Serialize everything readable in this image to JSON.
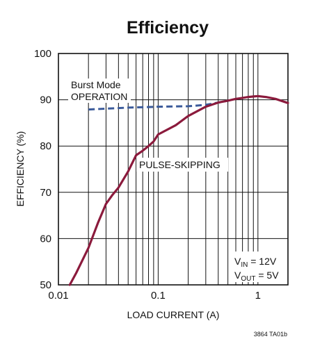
{
  "chart_data": {
    "type": "line",
    "title": "Efficiency",
    "xlabel": "LOAD CURRENT (A)",
    "ylabel": "EFFICIENCY (%)",
    "xscale": "log",
    "xlim": [
      0.01,
      2
    ],
    "ylim": [
      50,
      100
    ],
    "grid": true,
    "x_ticks": [
      0.01,
      0.1,
      1
    ],
    "x_tick_labels": [
      "0.01",
      "0.1",
      "1"
    ],
    "y_ticks": [
      50,
      60,
      70,
      80,
      90,
      100
    ],
    "y_tick_labels": [
      "50",
      "60",
      "70",
      "80",
      "90",
      "100"
    ],
    "colors": {
      "curve": "#8b1a3c",
      "burst": "#3a5a9a",
      "grid": "#111111"
    },
    "series": [
      {
        "label": "Burst Mode OPERATION",
        "style": "dashed",
        "x": [
          0.02,
          0.05,
          0.1,
          0.2,
          0.3,
          0.4,
          0.5
        ],
        "y": [
          87.9,
          88.3,
          88.5,
          88.6,
          88.9,
          89.4,
          89.8
        ]
      },
      {
        "label": "PULSE-SKIPPING",
        "style": "solid",
        "x": [
          0.013,
          0.015,
          0.02,
          0.025,
          0.03,
          0.035,
          0.04,
          0.05,
          0.06,
          0.07,
          0.08,
          0.09,
          0.1,
          0.15,
          0.2,
          0.3,
          0.4,
          0.5,
          0.6,
          0.7,
          0.8,
          0.9,
          1.0,
          1.2,
          1.5,
          2.0
        ],
        "y": [
          50.0,
          52.5,
          58.0,
          63.5,
          67.5,
          69.5,
          71.0,
          74.5,
          78.0,
          79.0,
          80.0,
          81.0,
          82.5,
          84.5,
          86.5,
          88.5,
          89.4,
          89.8,
          90.2,
          90.4,
          90.6,
          90.7,
          90.8,
          90.6,
          90.2,
          89.3
        ]
      }
    ],
    "annotations": {
      "burst_line1": "Burst Mode",
      "burst_line2": "OPERATION",
      "pulse": "PULSE-SKIPPING",
      "vin_prefix": "V",
      "vin_sub": "IN",
      "vin_value": " = 12V",
      "vout_prefix": "V",
      "vout_sub": "OUT",
      "vout_value": " = 5V"
    },
    "footer": "3864 TA01b"
  }
}
